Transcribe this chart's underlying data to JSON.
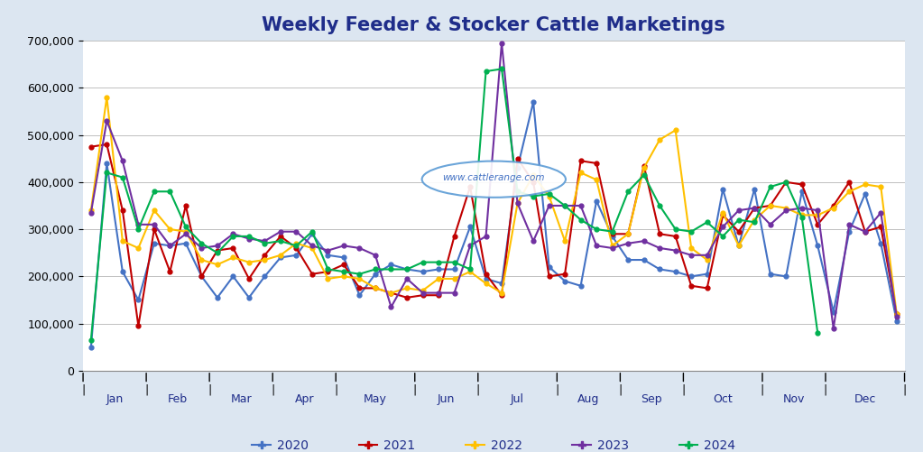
{
  "title": "Weekly Feeder & Stocker Cattle Marketings",
  "background_color": "#dce6f1",
  "plot_background": "#ffffff",
  "title_color": "#1f2d8a",
  "title_fontsize": 15,
  "ylim": [
    0,
    700000
  ],
  "yticks": [
    0,
    100000,
    200000,
    300000,
    400000,
    500000,
    600000,
    700000
  ],
  "ytick_labels": [
    "0",
    "100,000",
    "200,000",
    "300,000",
    "400,000",
    "500,000",
    "600,000",
    "700,000"
  ],
  "watermark": "www.cattlerange.com",
  "series": {
    "2020": {
      "color": "#4472c4",
      "values": [
        50000,
        440000,
        210000,
        150000,
        270000,
        265000,
        270000,
        200000,
        155000,
        200000,
        155000,
        200000,
        240000,
        245000,
        290000,
        245000,
        240000,
        160000,
        205000,
        225000,
        215000,
        210000,
        215000,
        215000,
        305000,
        195000,
        185000,
        430000,
        570000,
        220000,
        190000,
        180000,
        360000,
        285000,
        235000,
        235000,
        215000,
        210000,
        200000,
        205000,
        385000,
        265000,
        385000,
        205000,
        200000,
        380000,
        265000,
        125000,
        295000,
        375000,
        270000,
        105000
      ]
    },
    "2021": {
      "color": "#c00000",
      "values": [
        475000,
        480000,
        340000,
        95000,
        300000,
        210000,
        350000,
        200000,
        255000,
        260000,
        195000,
        245000,
        285000,
        260000,
        205000,
        210000,
        225000,
        175000,
        175000,
        165000,
        155000,
        160000,
        160000,
        285000,
        390000,
        205000,
        160000,
        450000,
        400000,
        200000,
        205000,
        445000,
        440000,
        290000,
        290000,
        435000,
        290000,
        285000,
        180000,
        175000,
        330000,
        295000,
        345000,
        350000,
        400000,
        395000,
        310000,
        350000,
        400000,
        295000,
        305000,
        120000
      ]
    },
    "2022": {
      "color": "#ffc000",
      "values": [
        340000,
        580000,
        275000,
        260000,
        340000,
        300000,
        295000,
        235000,
        225000,
        240000,
        230000,
        235000,
        245000,
        270000,
        260000,
        195000,
        200000,
        195000,
        175000,
        165000,
        175000,
        170000,
        195000,
        195000,
        210000,
        185000,
        165000,
        355000,
        415000,
        370000,
        275000,
        420000,
        405000,
        265000,
        290000,
        430000,
        490000,
        510000,
        260000,
        235000,
        335000,
        265000,
        320000,
        350000,
        345000,
        330000,
        330000,
        345000,
        380000,
        395000,
        390000,
        120000
      ]
    },
    "2023": {
      "color": "#7030a0",
      "values": [
        335000,
        530000,
        445000,
        310000,
        310000,
        265000,
        290000,
        260000,
        265000,
        290000,
        280000,
        275000,
        295000,
        295000,
        265000,
        255000,
        265000,
        260000,
        245000,
        135000,
        195000,
        165000,
        165000,
        165000,
        265000,
        285000,
        695000,
        355000,
        275000,
        350000,
        350000,
        350000,
        265000,
        260000,
        270000,
        275000,
        260000,
        255000,
        245000,
        245000,
        305000,
        340000,
        345000,
        310000,
        340000,
        345000,
        340000,
        90000,
        310000,
        295000,
        335000,
        115000
      ]
    },
    "2024": {
      "color": "#00b050",
      "values": [
        65000,
        420000,
        410000,
        300000,
        380000,
        380000,
        305000,
        270000,
        250000,
        285000,
        285000,
        270000,
        275000,
        265000,
        295000,
        215000,
        210000,
        205000,
        215000,
        215000,
        215000,
        230000,
        230000,
        230000,
        215000,
        635000,
        640000,
        380000,
        370000,
        375000,
        350000,
        320000,
        300000,
        295000,
        380000,
        415000,
        350000,
        300000,
        295000,
        315000,
        285000,
        320000,
        315000,
        390000,
        400000,
        325000,
        80000,
        null,
        null,
        null,
        null,
        null
      ]
    }
  },
  "month_boundaries": [
    0,
    4,
    8,
    12,
    16,
    21,
    25,
    30,
    34,
    38,
    43,
    47,
    52
  ],
  "month_labels": [
    "Jan",
    "Feb",
    "Mar",
    "Apr",
    "May",
    "Jun",
    "Jul",
    "Aug",
    "Sep",
    "Oct",
    "Nov",
    "Dec"
  ],
  "label_color": "#1f2d8a"
}
